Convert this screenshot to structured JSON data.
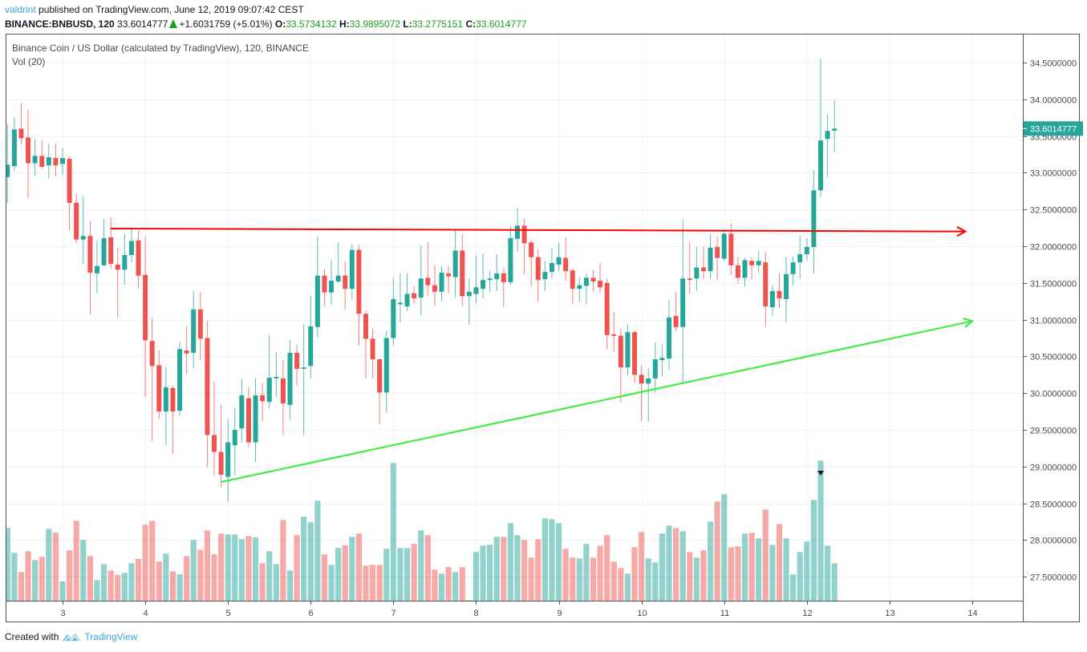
{
  "header": {
    "author": "valdrint",
    "published": "published on TradingView.com, June 12, 2019 09:07:42 CEST",
    "symbol": "BINANCE:BNBUSD, 120",
    "last": "33.6014777",
    "change": "+1.6031759 (+5.01%)",
    "o_label": "O:",
    "o": "33.5734132",
    "h_label": "H:",
    "h": "33.9895072",
    "l_label": "L:",
    "l": "33.2775151",
    "c_label": "C:",
    "c": "33.6014777"
  },
  "legend": {
    "title": "Binance Coin / US Dollar (calculated by TradingView), 120, BINANCE",
    "volume": "Vol (20)"
  },
  "footer": {
    "created_with": "Created with",
    "brand": "TradingView"
  },
  "colors": {
    "up": "#26a69a",
    "down": "#ef5350",
    "resistance_line": "#ff0000",
    "support_line": "#33ee33",
    "grid": "#eef3f8"
  },
  "chart_data": {
    "type": "candlestick",
    "interval": "120",
    "price_axis": {
      "range": [
        27.5,
        34.5
      ],
      "ticks": [
        "34.5000000",
        "34.0000000",
        "33.5000000",
        "33.0000000",
        "32.5000000",
        "32.0000000",
        "31.5000000",
        "31.0000000",
        "30.5000000",
        "30.0000000",
        "29.5000000",
        "29.0000000",
        "28.5000000",
        "28.0000000",
        "27.5000000"
      ],
      "last_price_label": "33.6014777"
    },
    "time_axis": {
      "ticks": [
        "3",
        "4",
        "5",
        "6",
        "7",
        "8",
        "9",
        "10",
        "11",
        "12",
        "13",
        "14"
      ]
    },
    "grid": true,
    "columns": [
      "time",
      "open",
      "high",
      "low",
      "close",
      "volume_relative"
    ],
    "candles": [
      [
        "06-02 08:00",
        32.94,
        33.66,
        32.59,
        33.11,
        272
      ],
      [
        "06-02 10:00",
        33.09,
        33.76,
        33.02,
        33.59,
        179
      ],
      [
        "06-02 12:00",
        33.6,
        33.94,
        33.39,
        33.47,
        107
      ],
      [
        "06-02 14:00",
        33.48,
        33.86,
        32.65,
        33.13,
        185
      ],
      [
        "06-02 16:00",
        33.13,
        33.46,
        32.96,
        33.23,
        152
      ],
      [
        "06-02 18:00",
        33.23,
        33.44,
        33.05,
        33.08,
        164
      ],
      [
        "06-02 20:00",
        33.1,
        33.39,
        32.93,
        33.21,
        269
      ],
      [
        "06-02 22:00",
        33.2,
        33.4,
        32.95,
        33.1,
        254
      ],
      [
        "06-03 00:00",
        33.12,
        33.34,
        32.98,
        33.2,
        72
      ],
      [
        "06-03 02:00",
        33.19,
        33.22,
        32.22,
        32.59,
        188
      ],
      [
        "06-03 04:00",
        32.59,
        32.71,
        32.04,
        32.09,
        299
      ],
      [
        "06-03 06:00",
        32.09,
        32.68,
        31.76,
        32.14,
        227
      ],
      [
        "06-03 08:00",
        32.14,
        32.34,
        31.07,
        31.64,
        167
      ],
      [
        "06-03 10:00",
        31.63,
        32.08,
        31.36,
        31.73,
        77
      ],
      [
        "06-03 12:00",
        31.74,
        32.37,
        31.72,
        32.11,
        137
      ],
      [
        "06-03 14:00",
        32.12,
        32.39,
        31.69,
        31.76,
        113
      ],
      [
        "06-03 16:00",
        31.75,
        31.98,
        31.03,
        31.68,
        96
      ],
      [
        "06-03 18:00",
        31.68,
        32.17,
        31.48,
        31.88,
        104
      ],
      [
        "06-03 20:00",
        31.88,
        32.26,
        31.78,
        32.07,
        140
      ],
      [
        "06-03 22:00",
        32.08,
        32.21,
        31.43,
        31.6,
        156
      ],
      [
        "06-04 00:00",
        31.61,
        32.13,
        29.95,
        30.72,
        284
      ],
      [
        "06-04 02:00",
        30.71,
        31.02,
        29.35,
        30.37,
        299
      ],
      [
        "06-04 04:00",
        30.38,
        30.58,
        29.65,
        29.75,
        146
      ],
      [
        "06-04 06:00",
        29.75,
        30.36,
        29.29,
        30.08,
        176
      ],
      [
        "06-04 08:00",
        30.07,
        30.1,
        29.17,
        29.75,
        110
      ],
      [
        "06-04 10:00",
        29.76,
        30.7,
        29.69,
        30.6,
        99
      ],
      [
        "06-04 12:00",
        30.58,
        30.91,
        30.26,
        30.54,
        167
      ],
      [
        "06-04 14:00",
        30.55,
        31.39,
        30.34,
        31.14,
        227
      ],
      [
        "06-04 16:00",
        31.14,
        31.37,
        30.45,
        30.74,
        191
      ],
      [
        "06-04 18:00",
        30.75,
        30.99,
        28.99,
        29.43,
        263
      ],
      [
        "06-04 20:00",
        29.43,
        30.15,
        28.88,
        29.2,
        173
      ],
      [
        "06-04 22:00",
        29.2,
        29.84,
        28.72,
        28.89,
        251
      ],
      [
        "06-05 00:00",
        28.86,
        29.64,
        28.52,
        29.33,
        248
      ],
      [
        "06-05 02:00",
        29.29,
        29.8,
        28.88,
        29.5,
        248
      ],
      [
        "06-05 04:00",
        29.52,
        30.19,
        29.33,
        29.97,
        230
      ],
      [
        "06-05 06:00",
        29.93,
        30.08,
        29.26,
        29.33,
        242
      ],
      [
        "06-05 08:00",
        29.33,
        30.21,
        29.06,
        29.97,
        237
      ],
      [
        "06-05 10:00",
        29.97,
        30.14,
        29.62,
        29.89,
        140
      ],
      [
        "06-05 12:00",
        29.88,
        30.79,
        29.79,
        30.21,
        185
      ],
      [
        "06-05 14:00",
        30.2,
        30.56,
        29.95,
        30.22,
        137
      ],
      [
        "06-05 16:00",
        30.2,
        30.45,
        29.43,
        29.86,
        302
      ],
      [
        "06-05 18:00",
        29.84,
        30.72,
        29.64,
        30.55,
        113
      ],
      [
        "06-05 20:00",
        30.55,
        30.66,
        30.1,
        30.33,
        245
      ],
      [
        "06-05 22:00",
        30.33,
        30.94,
        29.43,
        30.35,
        314
      ],
      [
        "06-06 00:00",
        30.37,
        31.32,
        30.2,
        30.91,
        293
      ],
      [
        "06-06 02:00",
        30.9,
        32.13,
        30.76,
        31.6,
        374
      ],
      [
        "06-06 04:00",
        31.6,
        31.69,
        31.18,
        31.37,
        173
      ],
      [
        "06-06 06:00",
        31.37,
        31.81,
        31.2,
        31.53,
        134
      ],
      [
        "06-06 08:00",
        31.52,
        32.05,
        31.5,
        31.6,
        197
      ],
      [
        "06-06 10:00",
        31.6,
        31.79,
        31.14,
        31.42,
        207
      ],
      [
        "06-06 12:00",
        31.42,
        32.03,
        31.28,
        31.95,
        239
      ],
      [
        "06-06 14:00",
        31.95,
        32.02,
        30.65,
        31.08,
        251
      ],
      [
        "06-06 16:00",
        31.08,
        31.12,
        30.2,
        30.74,
        131
      ],
      [
        "06-06 18:00",
        30.74,
        30.88,
        30.2,
        30.46,
        134
      ],
      [
        "06-06 20:00",
        30.46,
        30.47,
        29.58,
        30.01,
        134
      ],
      [
        "06-06 22:00",
        30.01,
        30.85,
        29.73,
        30.75,
        194
      ],
      [
        "06-07 00:00",
        30.75,
        31.57,
        30.65,
        31.28,
        515
      ],
      [
        "06-07 02:00",
        31.21,
        31.63,
        30.96,
        31.23,
        197
      ],
      [
        "06-07 04:00",
        31.18,
        31.63,
        31.12,
        31.35,
        197
      ],
      [
        "06-07 06:00",
        31.36,
        31.45,
        31.21,
        31.29,
        212
      ],
      [
        "06-07 08:00",
        31.3,
        32.01,
        31.06,
        31.56,
        263
      ],
      [
        "06-07 10:00",
        31.57,
        32.06,
        31.32,
        31.47,
        245
      ],
      [
        "06-07 12:00",
        31.47,
        31.74,
        31.19,
        31.38,
        116
      ],
      [
        "06-07 14:00",
        31.38,
        31.73,
        31.25,
        31.64,
        101
      ],
      [
        "06-07 16:00",
        31.63,
        31.73,
        31.36,
        31.59,
        126
      ],
      [
        "06-07 18:00",
        31.58,
        32.22,
        31.3,
        31.94,
        107
      ],
      [
        "06-07 20:00",
        31.94,
        32.16,
        31.18,
        31.32,
        126
      ],
      [
        "06-07 22:00",
        31.32,
        31.56,
        30.93,
        31.38,
        2
      ],
      [
        "06-08 00:00",
        31.35,
        31.87,
        31.23,
        31.44,
        182
      ],
      [
        "06-08 02:00",
        31.42,
        31.9,
        31.29,
        31.54,
        206
      ],
      [
        "06-08 04:00",
        31.54,
        31.66,
        31.37,
        31.56,
        209
      ],
      [
        "06-08 06:00",
        31.55,
        31.89,
        31.39,
        31.63,
        239
      ],
      [
        "06-08 08:00",
        31.63,
        31.71,
        31.18,
        31.51,
        239
      ],
      [
        "06-08 10:00",
        31.51,
        32.27,
        31.47,
        32.11,
        290
      ],
      [
        "06-08 12:00",
        32.1,
        32.52,
        31.92,
        32.28,
        245
      ],
      [
        "06-08 14:00",
        32.28,
        32.38,
        31.62,
        32.04,
        227
      ],
      [
        "06-08 16:00",
        32.05,
        32.09,
        31.45,
        31.85,
        161
      ],
      [
        "06-08 18:00",
        31.85,
        31.96,
        31.24,
        31.54,
        230
      ],
      [
        "06-08 20:00",
        31.55,
        31.8,
        31.39,
        31.65,
        308
      ],
      [
        "06-08 22:00",
        31.65,
        31.97,
        31.55,
        31.77,
        305
      ],
      [
        "06-09 00:00",
        31.75,
        32.05,
        31.66,
        31.85,
        290
      ],
      [
        "06-09 02:00",
        31.84,
        32.12,
        31.53,
        31.66,
        194
      ],
      [
        "06-09 04:00",
        31.67,
        31.7,
        31.22,
        31.42,
        161
      ],
      [
        "06-09 06:00",
        31.42,
        31.58,
        31.24,
        31.47,
        158
      ],
      [
        "06-09 08:00",
        31.46,
        31.63,
        31.21,
        31.57,
        212
      ],
      [
        "06-09 10:00",
        31.57,
        31.67,
        31.39,
        31.52,
        161
      ],
      [
        "06-09 12:00",
        31.53,
        31.77,
        31.37,
        31.44,
        206
      ],
      [
        "06-09 14:00",
        31.5,
        31.56,
        30.6,
        30.79,
        245
      ],
      [
        "06-09 16:00",
        30.8,
        31.1,
        30.56,
        30.78,
        146
      ],
      [
        "06-09 18:00",
        30.78,
        30.88,
        29.87,
        30.35,
        122
      ],
      [
        "06-09 20:00",
        30.35,
        30.94,
        30.24,
        30.83,
        101
      ],
      [
        "06-09 22:00",
        30.83,
        30.86,
        30.14,
        30.25,
        200
      ],
      [
        "06-10 00:00",
        30.25,
        30.38,
        29.62,
        30.13,
        257
      ],
      [
        "06-10 02:00",
        30.13,
        30.34,
        29.61,
        30.2,
        158
      ],
      [
        "06-10 04:00",
        30.2,
        30.69,
        30.01,
        30.46,
        143
      ],
      [
        "06-10 06:00",
        30.45,
        30.66,
        30.23,
        30.48,
        251
      ],
      [
        "06-10 08:00",
        30.47,
        31.27,
        30.32,
        31.03,
        281
      ],
      [
        "06-10 10:00",
        31.05,
        31.38,
        30.84,
        30.9,
        272
      ],
      [
        "06-10 12:00",
        30.9,
        32.36,
        30.13,
        31.56,
        260
      ],
      [
        "06-10 14:00",
        31.56,
        32.06,
        31.35,
        31.54,
        182
      ],
      [
        "06-10 16:00",
        31.56,
        31.99,
        31.39,
        31.71,
        161
      ],
      [
        "06-10 18:00",
        31.71,
        32.0,
        31.55,
        31.66,
        188
      ],
      [
        "06-10 20:00",
        31.66,
        32.16,
        31.56,
        31.98,
        296
      ],
      [
        "06-10 22:00",
        31.99,
        32.13,
        31.54,
        31.84,
        371
      ],
      [
        "06-11 00:00",
        31.83,
        32.22,
        31.8,
        32.17,
        398
      ],
      [
        "06-11 02:00",
        32.17,
        32.31,
        31.61,
        31.74,
        200
      ],
      [
        "06-11 04:00",
        31.74,
        31.86,
        31.49,
        31.57,
        203
      ],
      [
        "06-11 06:00",
        31.57,
        31.84,
        31.45,
        31.81,
        251
      ],
      [
        "06-11 08:00",
        31.8,
        31.84,
        31.55,
        31.74,
        254
      ],
      [
        "06-11 10:00",
        31.74,
        31.95,
        31.63,
        31.8,
        233
      ],
      [
        "06-11 12:00",
        31.78,
        31.92,
        30.9,
        31.18,
        341
      ],
      [
        "06-11 14:00",
        31.17,
        31.47,
        31.06,
        31.39,
        209
      ],
      [
        "06-11 16:00",
        31.39,
        31.63,
        31.16,
        31.29,
        287
      ],
      [
        "06-11 18:00",
        31.28,
        31.85,
        30.96,
        31.62,
        233
      ],
      [
        "06-11 20:00",
        31.62,
        31.86,
        31.47,
        31.78,
        98
      ],
      [
        "06-11 22:00",
        31.78,
        32.14,
        31.56,
        31.89,
        182
      ],
      [
        "06-12 00:00",
        31.89,
        32.11,
        31.81,
        31.99,
        221
      ],
      [
        "06-12 02:00",
        31.99,
        33.04,
        31.63,
        32.76,
        377
      ],
      [
        "06-12 04:00",
        32.76,
        34.55,
        32.67,
        33.44,
        524
      ],
      [
        "06-12 06:00",
        33.46,
        33.8,
        32.94,
        33.57,
        206
      ],
      [
        "06-12 08:00",
        33.5734132,
        33.9895072,
        33.2775151,
        33.6014777,
        140
      ]
    ],
    "drawings": [
      {
        "kind": "resistance-trend-line",
        "color": "#ff0000",
        "arrow": true,
        "from": {
          "time": "06-03 14:00",
          "price": 32.24
        },
        "to": {
          "time": "06-13 22:00",
          "price": 32.2
        }
      },
      {
        "kind": "support-trend-line",
        "color": "#33ee33",
        "arrow": true,
        "from": {
          "time": "06-04 22:00",
          "price": 28.79
        },
        "to": {
          "time": "06-14 00:00",
          "price": 30.98
        }
      }
    ],
    "volume_marker": {
      "time": "06-12 04:00",
      "icon": "triangle-down"
    }
  }
}
